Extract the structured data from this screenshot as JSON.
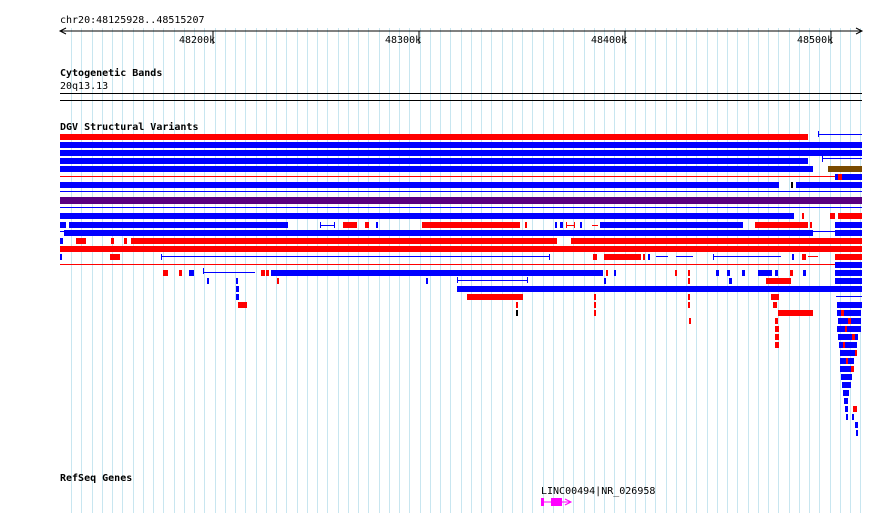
{
  "region": {
    "label": "chr20:48125928..48515207",
    "start": 48125928,
    "end": 48515207
  },
  "ruler": {
    "ticks": [
      {
        "label": "48200k",
        "pos": 48200000
      },
      {
        "label": "48300k",
        "pos": 48300000
      },
      {
        "label": "48400k",
        "pos": 48400000
      },
      {
        "label": "48500k",
        "pos": 48500000
      }
    ]
  },
  "tracks": {
    "cytobands": {
      "title": "Cytogenetic Bands",
      "band": "20q13.13"
    },
    "dgv": {
      "title": "DGV Structural Variants"
    },
    "refseq": {
      "title": "RefSeq Genes",
      "gene_label": "LINC00494|NR_026958"
    }
  },
  "colors": {
    "gain": "#ff0000",
    "loss": "#0000ff",
    "complex": "#5a0080",
    "inversion": "#7a4a00",
    "gene": "#ff00ff",
    "grid": "#c8e6f0"
  }
}
